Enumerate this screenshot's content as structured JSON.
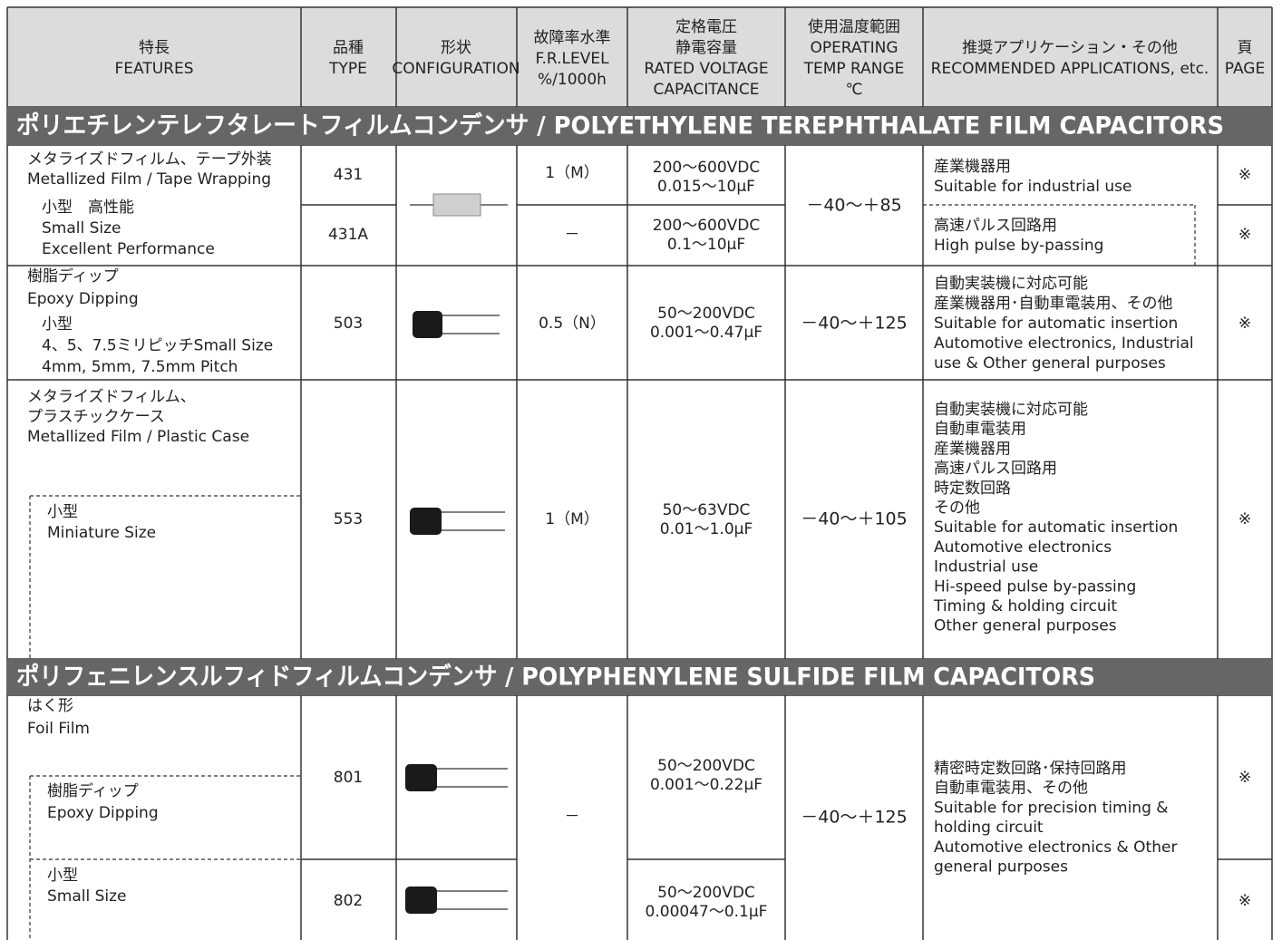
{
  "header": {
    "columns": [
      [
        "特長",
        "FEATURES"
      ],
      [
        "品種",
        "TYPE"
      ],
      [
        "形状",
        "CONFIGURATION"
      ],
      [
        "故障率水準",
        "F.R.LEVEL",
        "%/1000h"
      ],
      [
        "定格電圧",
        "静電容量",
        "RATED VOLTAGE",
        "CAPACITANCE"
      ],
      [
        "使用温度範囲",
        "OPERATING",
        "TEMP RANGE",
        "℃"
      ],
      [
        "推奨アプリケーション・その他",
        "RECOMMENDED APPLICATIONS, etc."
      ],
      [
        "頁",
        "PAGE"
      ]
    ]
  },
  "sections": [
    {
      "title": "ポリエチレンテレフタレートフィルムコンデンサ / POLYETHYLENE TEREPHTHALATE FILM CAPACITORS",
      "products": [
        {
          "features": [
            "メタライズドフィルム、テープ外装",
            "Metallized Film / Tape Wrapping"
          ],
          "subfeatures": [
            "小型　高性能",
            "Small Size",
            "Excellent Performance"
          ],
          "type": "431",
          "fr_level": "1（M）",
          "rating": [
            "200～600VDC",
            "0.015～10μF"
          ],
          "temp": "－40～＋85",
          "applications": [
            "産業機器用",
            "Suitable for industrial use"
          ],
          "page": "※"
        },
        {
          "type": "431A",
          "fr_level": "－",
          "rating": [
            "200～600VDC",
            "0.1～10μF"
          ],
          "applications": [
            "高速パルス回路用",
            "High pulse by-passing"
          ],
          "page": "※"
        },
        {
          "features": [
            "樹脂ディップ",
            "Epoxy Dipping"
          ],
          "subfeatures": [
            "小型",
            "4、5、7.5ミリピッチSmall Size",
            "4mm, 5mm, 7.5mm Pitch"
          ],
          "type": "503",
          "fr_level": "0.5（N）",
          "rating": [
            "50～200VDC",
            "0.001～0.47μF"
          ],
          "temp": "－40～＋125",
          "applications": [
            "自動実装機に対応可能",
            "産業機器用･自動車電装用、その他",
            "Suitable for automatic insertion",
            "Automotive electronics, Industrial",
            "use & Other general purposes"
          ],
          "page": "※"
        },
        {
          "features": [
            "メタライズドフィルム、",
            "プラスチックケース",
            "Metallized Film / Plastic Case"
          ],
          "subfeatures": [
            "小型",
            "Miniature Size"
          ],
          "type": "553",
          "fr_level": "1（M）",
          "rating": [
            "50～63VDC",
            "0.01～1.0μF"
          ],
          "temp": "－40～＋105",
          "applications": [
            "自動実装機に対応可能",
            "自動車電装用",
            "産業機器用",
            "高速パルス回路用",
            "時定数回路",
            "その他",
            "Suitable for automatic insertion",
            "Automotive electronics",
            "Industrial use",
            "Hi-speed pulse by-passing",
            "Timing & holding circuit",
            "Other general purposes"
          ],
          "page": "※"
        }
      ]
    },
    {
      "title": "ポリフェニレンスルフィドフィルムコンデンサ / POLYPHENYLENE SULFIDE FILM CAPACITORS",
      "products": [
        {
          "features": [
            "はく形",
            "Foil Film"
          ],
          "subfeatures": [
            "樹脂ディップ",
            "Epoxy Dipping"
          ],
          "type": "801",
          "fr_level": "－",
          "rating": [
            "50～200VDC",
            "0.001～0.22μF"
          ],
          "temp": "－40～＋125",
          "applications": [
            "精密時定数回路･保持回路用",
            "自動車電装用、その他",
            "Suitable for precision timing &",
            "holding circuit",
            "Automotive electronics & Other",
            "general purposes"
          ],
          "page": "※"
        },
        {
          "subfeatures": [
            "小型",
            "Small Size"
          ],
          "type": "802",
          "rating": [
            "50～200VDC",
            "0.00047～0.1μF"
          ],
          "page": "※"
        }
      ]
    }
  ]
}
